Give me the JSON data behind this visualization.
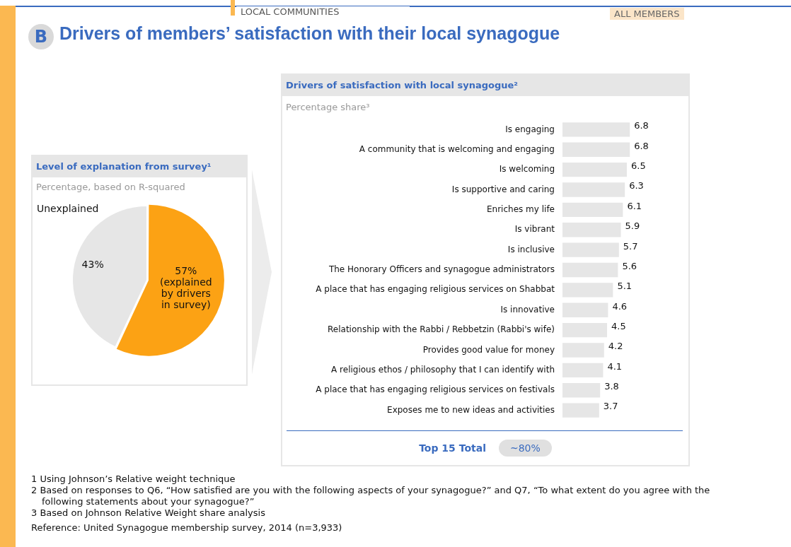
{
  "chart_data": [
    {
      "type": "other",
      "subtitle": "LOCAL COMMUNITIES",
      "title": "Drivers of members’ satisfaction with their local synagogue",
      "annotations": [
        "B",
        "ALL MEMBERS",
        "1 Using Johnson’s Relative weight technique",
        "2 Based on responses to Q6, “How satisfied are you with the following aspects of your synagogue?” and Q7, “To what extent do you agree with the following statements about your synagogue?”",
        "3 Based on Johnson Relative Weight share analysis",
        "Reference: United Synagogue membership survey, 2014 (n=3,933)"
      ]
    },
    {
      "type": "pie",
      "title": "Level of explanation from survey¹",
      "subtitle": "Percentage, based on R-squared",
      "categories": [
        "(explained by drivers in survey)",
        "Unexplained"
      ],
      "values": [
        57,
        43
      ],
      "colors": [
        "#fca214",
        "#e6e6e6"
      ],
      "value_labels": [
        "57%",
        "43%"
      ],
      "legend": false
    },
    {
      "type": "bar",
      "orientation": "horizontal",
      "title": "Drivers of satisfaction with local synagogue²",
      "subtitle": "Percentage share³",
      "categories": [
        "Is engaging",
        "A community that is welcoming and engaging",
        "Is welcoming",
        "Is supportive and caring",
        "Enriches my life",
        "Is vibrant",
        "Is inclusive",
        "The Honorary Officers and synagogue administrators",
        "A place that has engaging religious services on Shabbat",
        "Is innovative",
        "Relationship with the Rabbi / Rebbetzin (Rabbi's wife)",
        "Provides good value for money",
        "A religious ethos / philosophy that I can identify with",
        "A place that has engaging religious services on festivals",
        "Exposes me to new ideas and activities"
      ],
      "values": [
        6.8,
        6.8,
        6.5,
        6.3,
        6.1,
        5.9,
        5.7,
        5.6,
        5.1,
        4.6,
        4.5,
        4.2,
        4.1,
        3.8,
        3.7
      ],
      "color": "#e6e6e6",
      "data_labels": true,
      "legend": false,
      "annotations": [
        "Top 15 Total",
        "~80%"
      ]
    }
  ]
}
